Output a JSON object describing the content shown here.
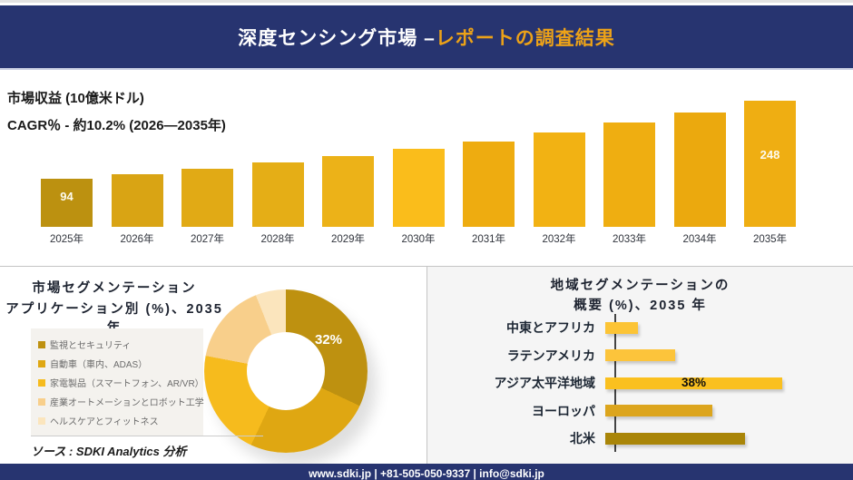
{
  "header": {
    "title_white": "深度センシング市場 –",
    "title_gold": "レポートの調査結果"
  },
  "revenue_chart": {
    "metric_label": "市場収益 (10億米ドル)",
    "cagr_label": "CAGR％ - 約10.2% (2026―2035年)",
    "bars": [
      {
        "year": "2025年",
        "value": 94,
        "label": "94",
        "color": "#BC9110"
      },
      {
        "year": "2026年",
        "value": 104,
        "label": "",
        "color": "#D9A414"
      },
      {
        "year": "2027年",
        "value": 114,
        "label": "",
        "color": "#E1AA15"
      },
      {
        "year": "2028年",
        "value": 126,
        "label": "",
        "color": "#E5AE16"
      },
      {
        "year": "2029年",
        "value": 139,
        "label": "",
        "color": "#ECB218"
      },
      {
        "year": "2030年",
        "value": 153,
        "label": "",
        "color": "#FABD1B"
      },
      {
        "year": "2031年",
        "value": 168,
        "label": "",
        "color": "#EEAC10"
      },
      {
        "year": "2032年",
        "value": 186,
        "label": "",
        "color": "#F2B213"
      },
      {
        "year": "2033年",
        "value": 205,
        "label": "",
        "color": "#EFAE11"
      },
      {
        "year": "2034年",
        "value": 225,
        "label": "",
        "color": "#EBA90E"
      },
      {
        "year": "2035年",
        "value": 248,
        "label": "248",
        "color": "#EFAE12"
      }
    ]
  },
  "segmentation": {
    "title_line1": "市場セグメンテーション",
    "title_line2": "アプリケーション別 (%)、2035年",
    "legend": [
      {
        "label": "監視とセキュリティ",
        "color": "#BE9110"
      },
      {
        "label": "自動車（車内、ADAS）",
        "color": "#DFA712"
      },
      {
        "label": "家電製品（スマートフォン、AR/VR）",
        "color": "#F6BB1D"
      },
      {
        "label": "産業オートメーションとロボット工学",
        "color": "#F8CF8B"
      },
      {
        "label": "ヘルスケアとフィットネス",
        "color": "#FBE5BD"
      }
    ],
    "donut": {
      "values": [
        32,
        25,
        21,
        16,
        6
      ],
      "colors": [
        "#BE9110",
        "#DFA712",
        "#F6BB1D",
        "#F8CF8B",
        "#FBE5BD"
      ],
      "label": "32%"
    },
    "source": "ソース : SDKI Analytics 分析"
  },
  "regional": {
    "title_line1": "地域セグメンテーションの",
    "title_line2": "概要 (%)、2035 年",
    "bars": [
      {
        "label": "中東とアフリカ",
        "value": 7,
        "data_label": "",
        "color": "#FCC435"
      },
      {
        "label": "ラテンアメリカ",
        "value": 15,
        "data_label": "",
        "color": "#FCC43B"
      },
      {
        "label": "アジア太平洋地域",
        "value": 38,
        "data_label": "38%",
        "color": "#FAC01F"
      },
      {
        "label": "ヨーロッパ",
        "value": 23,
        "data_label": "",
        "color": "#DCA51D"
      },
      {
        "label": "北米",
        "value": 30,
        "data_label": "",
        "color": "#A98508"
      }
    ]
  },
  "footer": {
    "text": "www.sdki.jp | +81-505-050-9337 | info@sdki.jp"
  },
  "chart_data": [
    {
      "type": "bar",
      "title": "市場収益 (10億米ドル)",
      "subtitle": "CAGR％ - 約10.2% (2026―2035年)",
      "categories": [
        "2025年",
        "2026年",
        "2027年",
        "2028年",
        "2029年",
        "2030年",
        "2031年",
        "2032年",
        "2033年",
        "2034年",
        "2035年"
      ],
      "values": [
        94,
        104,
        114,
        126,
        139,
        153,
        168,
        186,
        205,
        225,
        248
      ],
      "visible_data_labels": {
        "2025年": 94,
        "2035年": 248
      },
      "note": "Intermediate values estimated from bar heights / 10.2% CAGR; only 94 and 248 are printed on the chart.",
      "xlabel": "",
      "ylabel": "市場収益 (10億米ドル)",
      "grid": false,
      "legend": "none"
    },
    {
      "type": "pie",
      "subtype": "donut",
      "title": "市場セグメンテーション アプリケーション別 (%)、2035年",
      "labels": [
        "監視とセキュリティ",
        "自動車（車内、ADAS）",
        "家電製品（スマートフォン、AR/VR）",
        "産業オートメーションとロボット工学",
        "ヘルスケアとフィットネス"
      ],
      "values": [
        32,
        25,
        21,
        16,
        6
      ],
      "visible_data_labels": {
        "監視とセキュリティ": "32%"
      },
      "note": "Only the 32% slice is labeled; other slice values estimated from arc angles.",
      "legend_position": "left"
    },
    {
      "type": "bar",
      "orientation": "horizontal",
      "title": "地域セグメンテーションの概要 (%)、2035 年",
      "categories": [
        "中東とアフリカ",
        "ラテンアメリカ",
        "アジア太平洋地域",
        "ヨーロッパ",
        "北米"
      ],
      "values": [
        7,
        15,
        38,
        23,
        30
      ],
      "visible_data_labels": {
        "アジア太平洋地域": "38%"
      },
      "note": "Only 38% is printed; other values estimated from bar lengths.",
      "grid": false,
      "legend": "none"
    }
  ]
}
